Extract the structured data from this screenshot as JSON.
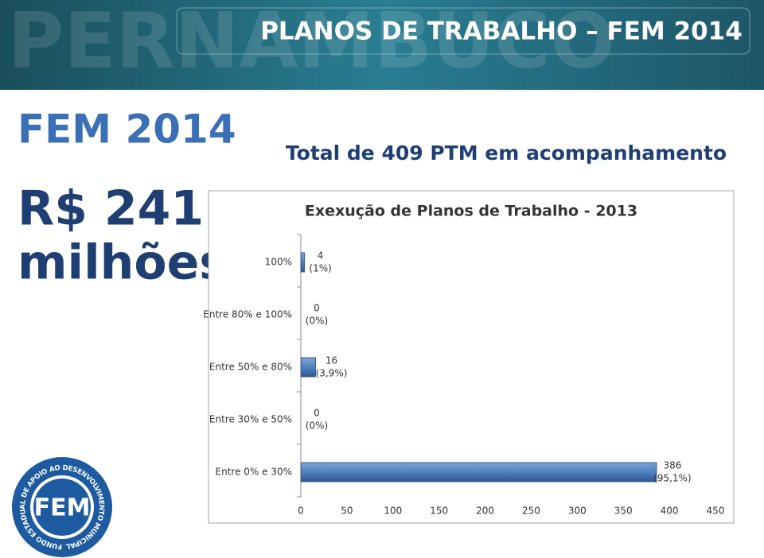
{
  "header": {
    "title": "PLANOS DE TRABALHO – FEM 2014",
    "watermark": "PERNAMBUCO"
  },
  "slide": {
    "label": "FEM 2014",
    "amount": "R$ 241",
    "unit": "milhões",
    "subtitle": "Total de 409 PTM em acompanhamento",
    "logo": {
      "text": "FEM",
      "ring_text": "FUNDO ESTADUAL DE APOIO AO DESENVOLVIMENTO MUNICIPAL"
    }
  },
  "chart_data": {
    "type": "hbar",
    "title": "Exexução de Planos de Trabalho - 2013",
    "categories": [
      "100%",
      "Entre 80% e 100%",
      "Entre 50% e 80%",
      "Entre 30% e 50%",
      "Entre 0% e 30%"
    ],
    "values": [
      4,
      0,
      16,
      0,
      386
    ],
    "value_labels": [
      [
        "4",
        "(1%)"
      ],
      [
        "0",
        "(0%)"
      ],
      [
        "16",
        "(3,9%)"
      ],
      [
        "0",
        "(0%)"
      ],
      [
        "386",
        "(95,1%)"
      ]
    ],
    "color": "#4f81bd",
    "xlim": [
      0,
      450
    ],
    "xticks": [
      0,
      50,
      100,
      150,
      200,
      250,
      300,
      350,
      400,
      450
    ],
    "grid": false
  }
}
